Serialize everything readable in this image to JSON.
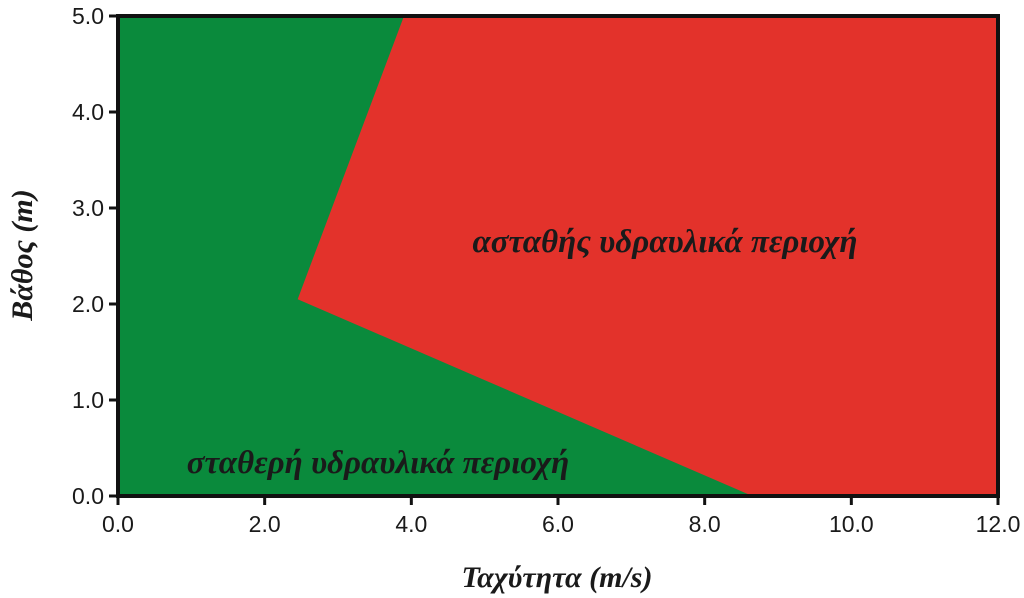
{
  "chart_data": {
    "type": "area",
    "title": "",
    "xlabel": "Ταχύτητα (m/s)",
    "ylabel": "Βάθος (m)",
    "xlim": [
      0,
      12
    ],
    "ylim": [
      0,
      5
    ],
    "x_ticks": [
      "0.0",
      "2.0",
      "4.0",
      "6.0",
      "8.0",
      "10.0",
      "12.0"
    ],
    "y_ticks": [
      "0.0",
      "1.0",
      "2.0",
      "3.0",
      "4.0",
      "5.0"
    ],
    "grid": false,
    "boundary": {
      "x": [
        8.65,
        2.45,
        3.9
      ],
      "y": [
        0.0,
        2.05,
        5.0
      ]
    },
    "regions": [
      {
        "name": "σταθερή υδραυλικά περιοχή",
        "color": "#0a8a3c"
      },
      {
        "name": "ασταθής υδραυλικά περιοχή",
        "color": "#e3322b"
      }
    ]
  }
}
